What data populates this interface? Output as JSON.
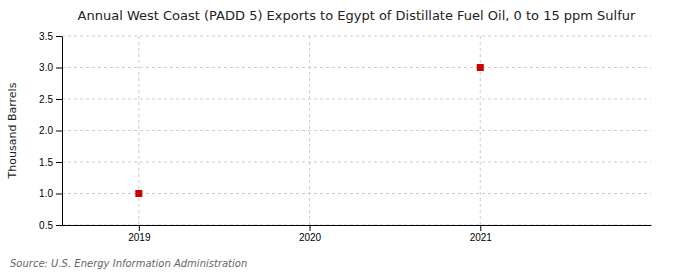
{
  "chart_data": {
    "type": "scatter",
    "title": "Annual West Coast (PADD 5) Exports to Egypt of Distillate Fuel Oil, 0 to 15 ppm Sulfur",
    "ylabel": "Thousand Barrels",
    "source": "Source: U.S. Energy Information Administration",
    "x": [
      2019,
      2021
    ],
    "values": [
      1.0,
      3.0
    ],
    "color": "#CC0000",
    "marker": "square",
    "xlim": [
      2018.55,
      2022.0
    ],
    "xticks": [
      2019,
      2020,
      2021
    ],
    "ylim": [
      0.5,
      3.5
    ],
    "yticks": [
      0.5,
      {
        "value": 1.0,
        "label": "1.0"
      },
      1.5,
      {
        "value": 2.0,
        "label": "2.0"
      },
      2.5,
      {
        "value": 3.0,
        "label": "3.0"
      },
      3.5
    ],
    "grid": true
  }
}
